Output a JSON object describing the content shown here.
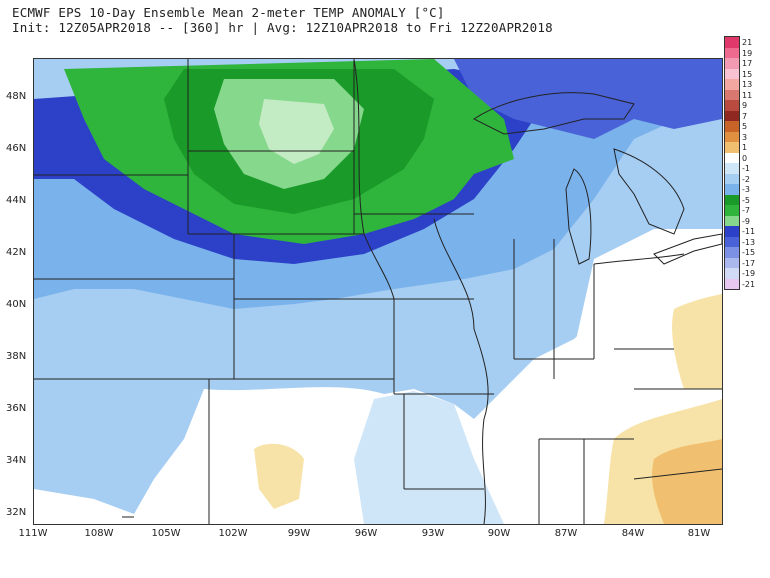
{
  "header": {
    "title_line1": "ECMWF EPS 10-Day Ensemble Mean 2-meter TEMP ANOMALY [°C]",
    "title_line2": "Init: 12Z05APR2018 -- [360] hr | Avg: 12Z10APR2018 to Fri 12Z20APR2018"
  },
  "map": {
    "lat_labels": [
      "48N",
      "46N",
      "44N",
      "42N",
      "40N",
      "38N",
      "36N",
      "34N",
      "32N"
    ],
    "lon_labels": [
      "111W",
      "108W",
      "105W",
      "102W",
      "99W",
      "96W",
      "93W",
      "90W",
      "87W",
      "84W",
      "81W"
    ]
  },
  "colorbar": {
    "labels": [
      "21",
      "19",
      "17",
      "15",
      "13",
      "11",
      "9",
      "7",
      "5",
      "3",
      "1",
      "0",
      "-1",
      "-2",
      "-3",
      "-5",
      "-7",
      "-9",
      "-11",
      "-13",
      "-15",
      "-17",
      "-19",
      "-21"
    ],
    "colors": [
      "#e0386a",
      "#ee6a8f",
      "#f39ab3",
      "#f8c2d2",
      "#f2a8a0",
      "#d9786e",
      "#b84a40",
      "#8e2820",
      "#c86428",
      "#e09040",
      "#f0c070",
      "#ffffff",
      "#cfe6f8",
      "#a6cdf2",
      "#7ab2ec",
      "#1a9a28",
      "#2fb43c",
      "#86d88c",
      "#2c40c8",
      "#4a62d8",
      "#7c90e4",
      "#aab8ee",
      "#d2dbf6",
      "#e8c8ee"
    ]
  }
}
